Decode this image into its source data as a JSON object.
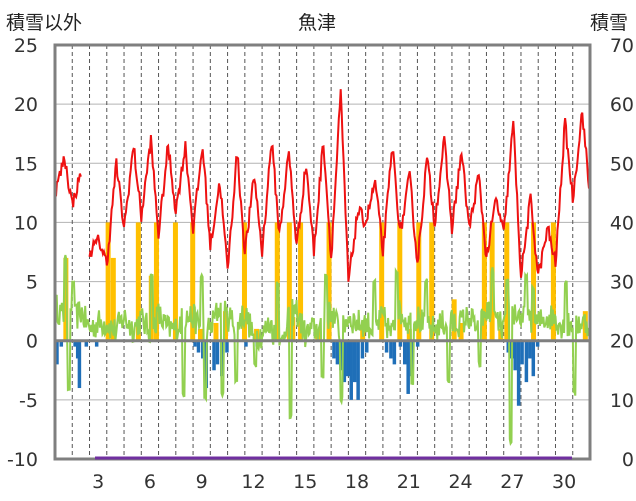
{
  "chart_data": {
    "type": "line",
    "title": "魚津",
    "left_axis_label": "積雪以外",
    "right_axis_label": "積雪",
    "left_ylim": [
      -10,
      25
    ],
    "left_ticks": [
      "25",
      "20",
      "15",
      "10",
      "5",
      "0",
      "-5",
      "-10"
    ],
    "right_ylim": [
      0,
      70
    ],
    "right_ticks": [
      "70",
      "60",
      "50",
      "40",
      "30",
      "20",
      "10",
      "0"
    ],
    "x_range": [
      1,
      32
    ],
    "x_ticks": [
      3,
      6,
      9,
      12,
      15,
      18,
      21,
      24,
      27,
      30
    ],
    "grid": true,
    "colors": {
      "temperature": "#ee1111",
      "wind": "#92d050",
      "sunshine": "#ffc000",
      "precipitation": "#1f6fb8",
      "snow": "#7030a0",
      "frame": "#7f7f7f"
    },
    "temperature_daily": [
      [
        1,
        12.5,
        15.5
      ],
      [
        2,
        11.5,
        14.5
      ],
      [
        3,
        7.5,
        8.5
      ],
      [
        4,
        6.5,
        15.0
      ],
      [
        5,
        9.5,
        16.5
      ],
      [
        6,
        10.5,
        17.0
      ],
      [
        7,
        9.0,
        16.5
      ],
      [
        8,
        11.0,
        16.5
      ],
      [
        9,
        9.5,
        16.5
      ],
      [
        10,
        8.0,
        13.5
      ],
      [
        11,
        6.0,
        16.0
      ],
      [
        12,
        7.5,
        14.0
      ],
      [
        13,
        7.5,
        17.0
      ],
      [
        14,
        9.0,
        16.0
      ],
      [
        15,
        8.0,
        15.0
      ],
      [
        16,
        7.5,
        17.0
      ],
      [
        17,
        7.0,
        21.0
      ],
      [
        18,
        5.0,
        11.0
      ],
      [
        19,
        10.0,
        13.5
      ],
      [
        20,
        7.5,
        16.5
      ],
      [
        21,
        9.0,
        14.0
      ],
      [
        22,
        6.5,
        15.5
      ],
      [
        23,
        10.0,
        17.0
      ],
      [
        24,
        9.5,
        16.0
      ],
      [
        25,
        9.5,
        14.0
      ],
      [
        26,
        7.0,
        12.0
      ],
      [
        27,
        9.0,
        18.5
      ],
      [
        28,
        5.5,
        12.0
      ],
      [
        29,
        5.5,
        9.5
      ],
      [
        30,
        6.5,
        18.5
      ],
      [
        31,
        12.0,
        19.5
      ]
    ],
    "temperature_gap": [
      2.55,
      2.95
    ],
    "wind_daily": [
      [
        1,
        3.0,
        2.0
      ],
      [
        2,
        1.5,
        2.5
      ],
      [
        3,
        1.0,
        1.5
      ],
      [
        4,
        1.5,
        0.8
      ],
      [
        5,
        2.0,
        1.0
      ],
      [
        6,
        1.8,
        0.8
      ],
      [
        7,
        2.2,
        1.0
      ],
      [
        8,
        1.0,
        2.0
      ],
      [
        9,
        2.0,
        1.0
      ],
      [
        10,
        1.0,
        2.8
      ],
      [
        11,
        2.0,
        1.5
      ],
      [
        12,
        2.3,
        0.5
      ],
      [
        13,
        0.5,
        1.5
      ],
      [
        14,
        -1.0,
        2.2
      ],
      [
        15,
        2.5,
        0.5
      ],
      [
        16,
        1.0,
        1.0
      ],
      [
        17,
        2.5,
        0.8
      ],
      [
        18,
        2.0,
        1.5
      ],
      [
        19,
        1.5,
        1.0
      ],
      [
        20,
        2.0,
        0.5
      ],
      [
        21,
        2.5,
        1.5
      ],
      [
        22,
        2.0,
        1.0
      ],
      [
        23,
        1.0,
        1.5
      ],
      [
        24,
        1.5,
        1.5
      ],
      [
        25,
        2.0,
        1.0
      ],
      [
        26,
        2.5,
        1.8
      ],
      [
        27,
        1.0,
        2.5
      ],
      [
        28,
        2.0,
        1.5
      ],
      [
        29,
        1.5,
        2.0
      ],
      [
        30,
        2.0,
        1.0
      ],
      [
        31,
        1.5,
        1.5
      ]
    ],
    "wind_extremes": [
      [
        1.6,
        7.0
      ],
      [
        1.8,
        -4.0
      ],
      [
        2.05,
        5.0
      ],
      [
        6.6,
        5.5
      ],
      [
        8.45,
        -4.5
      ],
      [
        9.5,
        5.5
      ],
      [
        9.7,
        -5.0
      ],
      [
        10.7,
        -4.5
      ],
      [
        11.5,
        -3.5
      ],
      [
        12.6,
        -2.0
      ],
      [
        13.9,
        5.0
      ],
      [
        14.65,
        -6.5
      ],
      [
        16.5,
        -3.0
      ],
      [
        16.7,
        5.5
      ],
      [
        17.6,
        -5.0
      ],
      [
        19.5,
        5.0
      ],
      [
        20.8,
        6.0
      ],
      [
        21.7,
        -3.5
      ],
      [
        22.5,
        5.0
      ],
      [
        23.8,
        -3.5
      ],
      [
        25.6,
        -2.0
      ],
      [
        26.35,
        6.0
      ],
      [
        27.2,
        5.0
      ],
      [
        27.4,
        -8.5
      ],
      [
        28.3,
        5.5
      ],
      [
        28.7,
        4.5
      ],
      [
        30.6,
        5.0
      ],
      [
        31.1,
        -4.5
      ]
    ],
    "sunshine": [
      [
        1.6,
        7.0
      ],
      [
        4.05,
        10.0
      ],
      [
        4.35,
        7.0
      ],
      [
        5.8,
        10.0
      ],
      [
        6.55,
        5.5
      ],
      [
        6.85,
        10.0
      ],
      [
        7.95,
        10.0
      ],
      [
        8.95,
        10.0
      ],
      [
        9.4,
        1.0
      ],
      [
        10.3,
        1.5
      ],
      [
        10.85,
        2.5
      ],
      [
        11.95,
        10.0
      ],
      [
        12.65,
        1.0
      ],
      [
        13.85,
        10.0
      ],
      [
        14.55,
        10.0
      ],
      [
        14.75,
        2.0
      ],
      [
        15.2,
        10.0
      ],
      [
        16.2,
        1.0
      ],
      [
        16.85,
        10.0
      ],
      [
        18.8,
        1.0
      ],
      [
        19.9,
        10.0
      ],
      [
        20.95,
        10.0
      ],
      [
        21.5,
        1.0
      ],
      [
        22.05,
        10.0
      ],
      [
        22.8,
        10.0
      ],
      [
        24.1,
        3.5
      ],
      [
        24.5,
        1.5
      ],
      [
        25.85,
        10.0
      ],
      [
        26.3,
        10.0
      ],
      [
        26.8,
        1.0
      ],
      [
        27.15,
        10.0
      ],
      [
        28.7,
        10.0
      ],
      [
        29.85,
        10.0
      ],
      [
        31.7,
        2.5
      ]
    ],
    "precipitation": [
      [
        1.1,
        -2.0
      ],
      [
        1.35,
        -0.5
      ],
      [
        2.15,
        -0.5
      ],
      [
        2.3,
        -1.5
      ],
      [
        2.4,
        -4.0
      ],
      [
        2.8,
        -0.5
      ],
      [
        3.4,
        -0.5
      ],
      [
        9.1,
        -0.5
      ],
      [
        9.3,
        -1.0
      ],
      [
        9.55,
        -1.5
      ],
      [
        9.75,
        -4.0
      ],
      [
        10.2,
        -2.5
      ],
      [
        10.4,
        -2.0
      ],
      [
        10.65,
        -3.0
      ],
      [
        10.95,
        -1.0
      ],
      [
        12.05,
        -0.5
      ],
      [
        12.7,
        -0.5
      ],
      [
        17.15,
        -1.5
      ],
      [
        17.35,
        -2.0
      ],
      [
        17.55,
        -2.5
      ],
      [
        17.75,
        -3.5
      ],
      [
        17.95,
        -3.0
      ],
      [
        18.15,
        -5.0
      ],
      [
        18.35,
        -3.5
      ],
      [
        18.55,
        -5.0
      ],
      [
        18.8,
        -1.5
      ],
      [
        19.05,
        -1.0
      ],
      [
        20.2,
        -1.0
      ],
      [
        20.45,
        -1.5
      ],
      [
        20.65,
        -2.0
      ],
      [
        21.0,
        -0.5
      ],
      [
        21.25,
        -2.0
      ],
      [
        21.45,
        -4.5
      ],
      [
        21.65,
        -3.0
      ],
      [
        22.0,
        -0.5
      ],
      [
        27.25,
        -1.0
      ],
      [
        27.45,
        -1.5
      ],
      [
        27.65,
        -2.5
      ],
      [
        27.85,
        -5.5
      ],
      [
        28.05,
        -2.0
      ],
      [
        28.3,
        -3.5
      ],
      [
        28.5,
        -1.5
      ],
      [
        28.7,
        -3.0
      ],
      [
        28.95,
        -0.5
      ]
    ],
    "snow_depth": [
      [
        1,
        0
      ],
      [
        32,
        0
      ]
    ]
  }
}
